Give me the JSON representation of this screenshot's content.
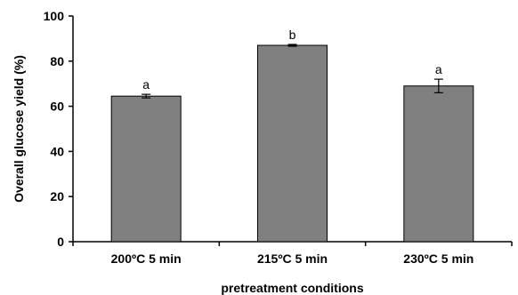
{
  "chart_data": {
    "type": "bar",
    "categories": [
      "200ºC 5 min",
      "215ºC 5 min",
      "230ºC 5 min"
    ],
    "values": [
      64.5,
      87.0,
      69.0
    ],
    "error": [
      0.8,
      0.4,
      3.0
    ],
    "significance_labels": [
      "a",
      "b",
      "a"
    ],
    "xlabel": "pretreatment conditions",
    "ylabel": "Overall glucose yield (%)",
    "ylim": [
      0,
      100
    ],
    "yticks": [
      0,
      20,
      40,
      60,
      80,
      100
    ],
    "bar_color": "#808080",
    "grid": false,
    "legend": "none"
  }
}
